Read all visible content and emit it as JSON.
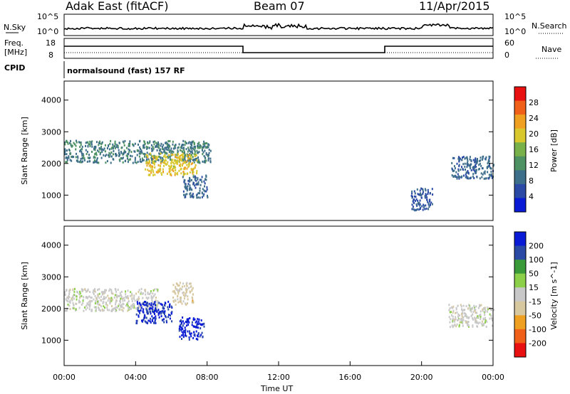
{
  "header": {
    "station": "Adak East (fitACF)",
    "beam": "Beam 07",
    "date": "11/Apr/2015"
  },
  "summary": {
    "nsky_label": "N.Sky",
    "nsky_ticks": [
      "10^5",
      "10^0"
    ],
    "nsearch_label": "N.Search",
    "nsearch_ticks": [
      "10^5",
      "10^0"
    ],
    "freq_label": "Freq.",
    "freq_unit": "[MHz]",
    "freq_ticks": [
      "18",
      "8"
    ],
    "nave_label": "Nave",
    "nave_ticks": [
      "60",
      "0"
    ],
    "cpid_label": "CPID",
    "cpid_value": "normalsound (fast) 157 RF"
  },
  "colors": {
    "power_scale": [
      "#0a1bd6",
      "#2a4aa6",
      "#3d6e8a",
      "#4e9263",
      "#78b04a",
      "#d8c82e",
      "#f0a020",
      "#f06018",
      "#e81010"
    ],
    "velocity_scale": [
      "#e81010",
      "#f06018",
      "#f0a020",
      "#d8c8a0",
      "#c8c8c8",
      "#8cd04a",
      "#3a9a3a",
      "#2a4aa6",
      "#0a1bd6"
    ]
  },
  "chart_data": [
    {
      "type": "heatmap",
      "name_panel": "power",
      "ylabel": "Slant Range [km]",
      "ylim": [
        200,
        4600
      ],
      "yticks": [
        "4000",
        "3000",
        "2000",
        "1000"
      ],
      "colorbar_label": "Power [dB]",
      "colorbar_ticks": [
        "28",
        "24",
        "20",
        "16",
        "12",
        "8",
        "4"
      ],
      "colorbar_range": [
        0,
        32
      ],
      "echo_regions": [
        {
          "t_start": 0.0,
          "t_end": 8.2,
          "range_center": 2400,
          "value": 10
        },
        {
          "t_start": 4.5,
          "t_end": 7.4,
          "range_center": 2000,
          "value": 20
        },
        {
          "t_start": 6.6,
          "t_end": 8.0,
          "range_center": 1300,
          "value": 8
        },
        {
          "t_start": 19.4,
          "t_end": 20.6,
          "range_center": 900,
          "value": 6
        },
        {
          "t_start": 21.6,
          "t_end": 24.0,
          "range_center": 1900,
          "value": 8
        }
      ]
    },
    {
      "type": "heatmap",
      "name_panel": "velocity",
      "ylabel": "Slant Range [km]",
      "ylim": [
        200,
        4600
      ],
      "yticks": [
        "4000",
        "3000",
        "2000",
        "1000"
      ],
      "xlabel": "Time UT",
      "xticks": [
        "00:00",
        "04:00",
        "08:00",
        "12:00",
        "16:00",
        "20:00",
        "00:00"
      ],
      "xlim": [
        0,
        24
      ],
      "colorbar_label": "Velocity [m s^-1]",
      "colorbar_ticks": [
        "200",
        "100",
        "50",
        "15",
        "-15",
        "-50",
        "-100",
        "-200"
      ],
      "colorbar_range": [
        -250,
        250
      ],
      "echo_regions": [
        {
          "t_start": 0.0,
          "t_end": 5.2,
          "range_center": 2300,
          "value": 0
        },
        {
          "t_start": 4.0,
          "t_end": 6.0,
          "range_center": 1900,
          "value": 200
        },
        {
          "t_start": 6.0,
          "t_end": 7.2,
          "range_center": 2500,
          "value": -50
        },
        {
          "t_start": 6.4,
          "t_end": 7.8,
          "range_center": 1400,
          "value": 220
        },
        {
          "t_start": 21.5,
          "t_end": 24.0,
          "range_center": 1800,
          "value": 0
        }
      ]
    }
  ]
}
